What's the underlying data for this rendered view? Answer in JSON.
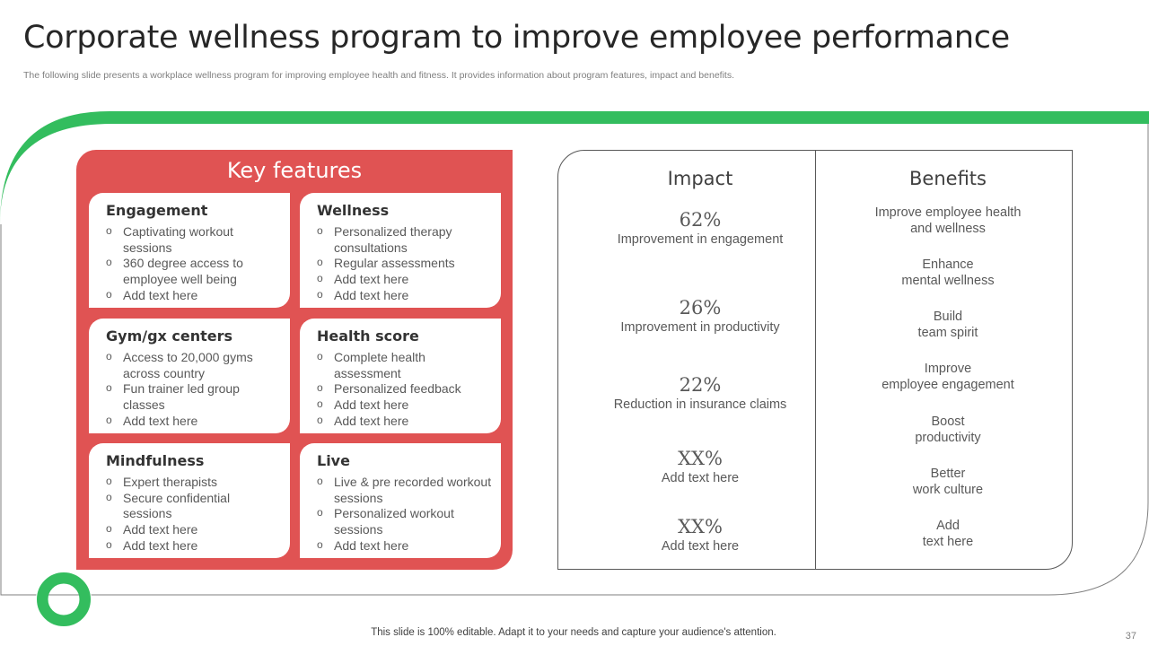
{
  "title": "Corporate wellness program to improve employee performance",
  "subtitle": "The following slide presents a workplace wellness program for improving employee health and fitness. It provides information about program features, impact and benefits.",
  "colors": {
    "accent_green": "#33bd5e",
    "panel_red": "#e05353"
  },
  "key_features": {
    "heading": "Key features",
    "cards": [
      {
        "title": "Engagement",
        "items": [
          "Captivating workout sessions",
          "360 degree access to employee well being",
          "Add text here"
        ]
      },
      {
        "title": "Wellness",
        "items": [
          "Personalized therapy consultations",
          "Regular assessments",
          "Add text here",
          "Add text here"
        ]
      },
      {
        "title": "Gym/gx centers",
        "items": [
          "Access to 20,000 gyms across country",
          "Fun trainer led group classes",
          "Add text here"
        ]
      },
      {
        "title": "Health score",
        "items": [
          "Complete health assessment",
          "Personalized feedback",
          "Add text here",
          "Add text here"
        ]
      },
      {
        "title": "Mindfulness",
        "items": [
          "Expert therapists",
          "Secure confidential sessions",
          "Add text here",
          "Add text here"
        ]
      },
      {
        "title": "Live",
        "items": [
          "Live & pre recorded workout sessions",
          "Personalized workout sessions",
          "Add text here"
        ]
      }
    ]
  },
  "impact": {
    "heading": "Impact",
    "items": [
      {
        "value": "62%",
        "label": "Improvement in engagement"
      },
      {
        "value": "26%",
        "label": "Improvement in productivity"
      },
      {
        "value": "22%",
        "label": "Reduction in insurance claims"
      },
      {
        "value": "XX%",
        "label": "Add text here"
      },
      {
        "value": "XX%",
        "label": "Add text here"
      }
    ]
  },
  "benefits": {
    "heading": "Benefits",
    "items": [
      "Improve employee health\nand wellness",
      "Enhance\nmental wellness",
      "Build\nteam spirit",
      "Improve\nemployee engagement",
      "Boost\nproductivity",
      "Better\nwork culture",
      "Add\ntext here"
    ]
  },
  "footer": "This slide is 100% editable. Adapt it to your needs and capture your audience's attention.",
  "page_number": "37"
}
